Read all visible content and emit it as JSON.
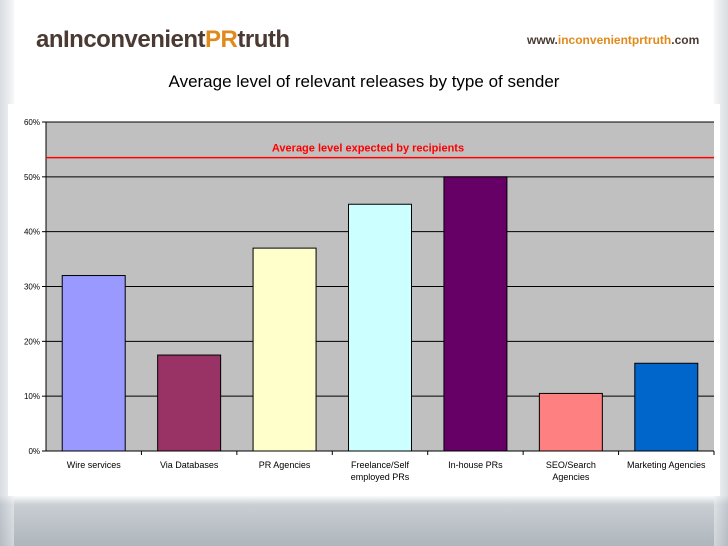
{
  "header": {
    "brand_prefix": "anInconvenient",
    "brand_pr": "PR",
    "brand_suffix": "truth",
    "url_prefix": "www.",
    "url_mid": "inconvenientprtruth",
    "url_suffix": ".com"
  },
  "chart_data": {
    "type": "bar",
    "title": "Average level of relevant releases by type of sender",
    "xlabel": "",
    "ylabel": "",
    "ylim": [
      0,
      60
    ],
    "yticks": [
      "0%",
      "10%",
      "20%",
      "30%",
      "40%",
      "50%",
      "60%"
    ],
    "categories": [
      "Wire services",
      "Via Databases",
      "PR Agencies",
      "Freelance/Self employed PRs",
      "In-house PRs",
      "SEO/Search Agencies",
      "Marketing Agencies"
    ],
    "category_lines": [
      [
        "Wire services"
      ],
      [
        "Via Databases"
      ],
      [
        "PR Agencies"
      ],
      [
        "Freelance/Self",
        "employed PRs"
      ],
      [
        "In-house PRs"
      ],
      [
        "SEO/Search",
        "Agencies"
      ],
      [
        "Marketing Agencies"
      ]
    ],
    "values": [
      32,
      17.5,
      37,
      45,
      50,
      10.5,
      16
    ],
    "bar_colors": [
      "#9999ff",
      "#993366",
      "#ffffcc",
      "#ccffff",
      "#660066",
      "#ff8080",
      "#0066cc"
    ],
    "reference_line": {
      "value": 53.5,
      "label": "Average level expected by recipients",
      "color": "#ff0000"
    },
    "plot_background": "#c0c0c0",
    "grid": true,
    "legend": "none"
  }
}
